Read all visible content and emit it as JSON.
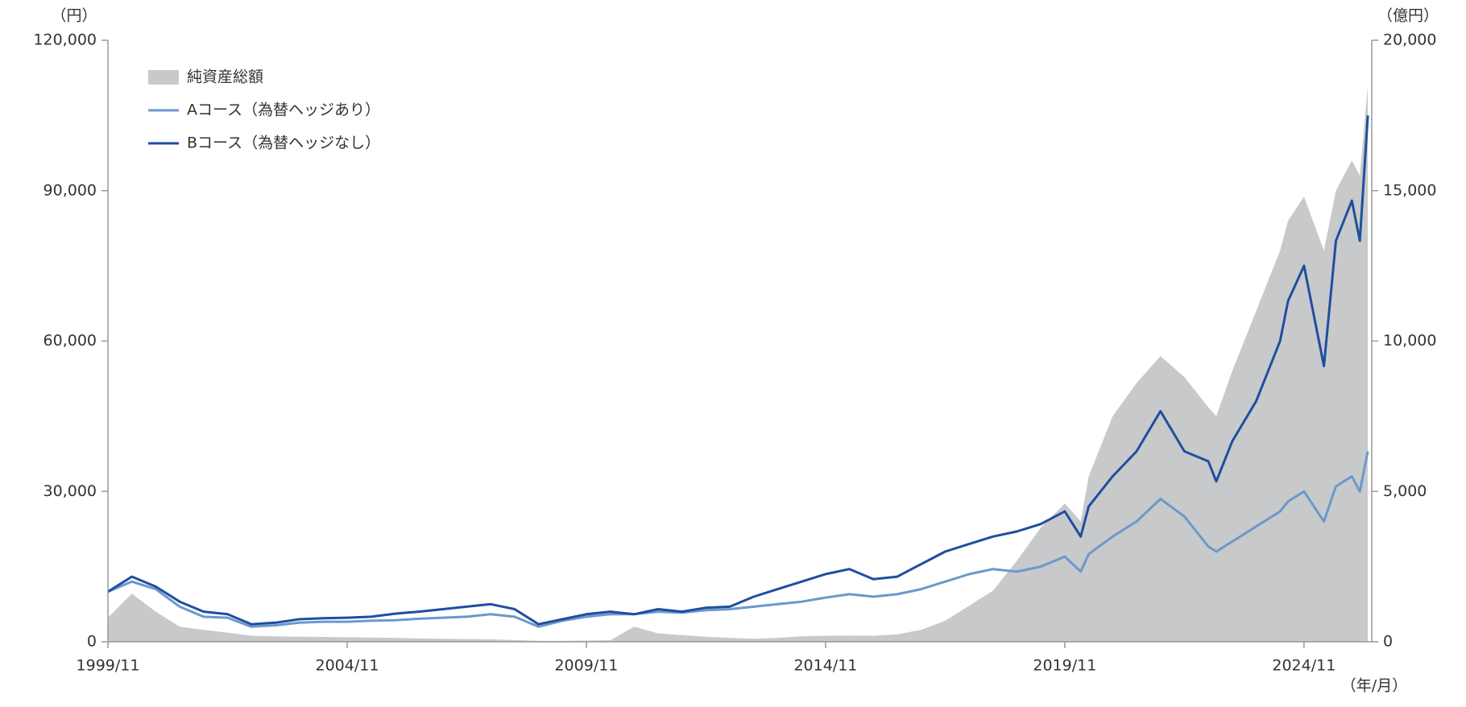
{
  "chart_data": {
    "type": "line",
    "y_unit_label": "（円）",
    "y2_unit_label": "（億円）",
    "x_unit_label": "（年/月）",
    "x": [
      "1999/11",
      "2000/05",
      "2000/11",
      "2001/05",
      "2001/11",
      "2002/05",
      "2002/11",
      "2003/05",
      "2003/11",
      "2004/05",
      "2004/11",
      "2005/05",
      "2005/11",
      "2006/05",
      "2006/11",
      "2007/05",
      "2007/11",
      "2008/05",
      "2008/11",
      "2009/05",
      "2009/11",
      "2010/05",
      "2010/11",
      "2011/05",
      "2011/11",
      "2012/05",
      "2012/11",
      "2013/05",
      "2013/11",
      "2014/05",
      "2014/11",
      "2015/05",
      "2015/11",
      "2016/05",
      "2016/11",
      "2017/05",
      "2017/11",
      "2018/05",
      "2018/11",
      "2019/05",
      "2019/11",
      "2020/03",
      "2020/05",
      "2020/11",
      "2021/05",
      "2021/11",
      "2022/05",
      "2022/11",
      "2023/01",
      "2023/05",
      "2023/11",
      "2024/05",
      "2024/07",
      "2024/11",
      "2025/04",
      "2025/07",
      "2025/11",
      "2026/01",
      "2026/03"
    ],
    "xlim": [
      "1999/11",
      "2026/04"
    ],
    "xticks": [
      "1999/11",
      "2004/11",
      "2009/11",
      "2014/11",
      "2019/11",
      "2024/11"
    ],
    "ylim": [
      0,
      120000
    ],
    "yticks": [
      0,
      {
        "value": 30000,
        "label": "30,000"
      },
      {
        "value": 60000,
        "label": "60,000"
      },
      {
        "value": 90000,
        "label": "90,000"
      },
      {
        "value": 120000,
        "label": "120,000"
      }
    ],
    "y2lim": [
      0,
      20000
    ],
    "y2ticks": [
      0,
      {
        "value": 5000,
        "label": "5,000"
      },
      {
        "value": 10000,
        "label": "10,000"
      },
      {
        "value": 15000,
        "label": "15,000"
      },
      {
        "value": 20000,
        "label": "20,000"
      }
    ],
    "legend": "upper left",
    "series": [
      {
        "name": "純資産総額",
        "kind": "area",
        "axis": "y2",
        "color": "#c8c9ca",
        "values": [
          800,
          1600,
          1000,
          500,
          400,
          300,
          200,
          180,
          170,
          160,
          150,
          140,
          130,
          110,
          100,
          90,
          80,
          60,
          30,
          30,
          40,
          50,
          500,
          280,
          220,
          170,
          130,
          100,
          130,
          180,
          200,
          210,
          200,
          250,
          400,
          700,
          1200,
          1700,
          2700,
          3800,
          4600,
          4000,
          5500,
          7500,
          8600,
          9500,
          8800,
          7800,
          7500,
          9000,
          11000,
          13000,
          14000,
          14800,
          13000,
          15000,
          16000,
          15500,
          18500
        ]
      },
      {
        "name": "Aコース（為替ヘッジあり）",
        "kind": "line",
        "color": "#6b98cc",
        "values": [
          10000,
          12000,
          10500,
          7000,
          5000,
          4800,
          3000,
          3300,
          3800,
          4000,
          4000,
          4200,
          4300,
          4600,
          4800,
          5000,
          5500,
          5000,
          3000,
          4200,
          5000,
          5500,
          5500,
          6000,
          5800,
          6300,
          6500,
          7000,
          7500,
          8000,
          8800,
          9500,
          9000,
          9500,
          10500,
          12000,
          13500,
          14500,
          14000,
          15000,
          17000,
          14000,
          17500,
          21000,
          24000,
          28500,
          25000,
          19000,
          18000,
          20000,
          23000,
          26000,
          28000,
          30000,
          24000,
          31000,
          33000,
          30000,
          38000
        ]
      },
      {
        "name": "Bコース（為替ヘッジなし）",
        "kind": "line",
        "color": "#1e4ea0",
        "values": [
          10000,
          13000,
          11000,
          8000,
          6000,
          5500,
          3500,
          3800,
          4500,
          4700,
          4800,
          5000,
          5600,
          6000,
          6500,
          7000,
          7500,
          6500,
          3500,
          4500,
          5500,
          6000,
          5500,
          6500,
          6000,
          6800,
          7000,
          9000,
          10500,
          12000,
          13500,
          14500,
          12500,
          13000,
          15500,
          18000,
          19500,
          21000,
          22000,
          23500,
          26000,
          21000,
          27000,
          33000,
          38000,
          46000,
          38000,
          36000,
          32000,
          40000,
          48000,
          60000,
          68000,
          75000,
          55000,
          80000,
          88000,
          80000,
          105000
        ]
      }
    ]
  }
}
